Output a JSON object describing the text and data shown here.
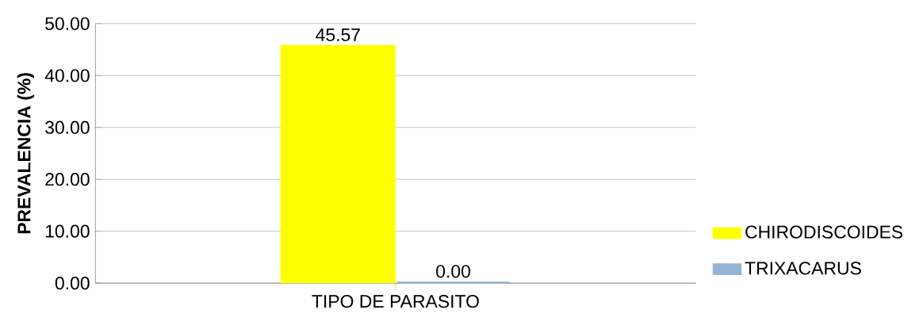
{
  "chart_data": {
    "type": "bar",
    "ylabel": "PREVALENCIA (%)",
    "categories": [
      "TIPO DE PARASITO"
    ],
    "series": [
      {
        "name": "CHIRODISCOIDES",
        "color": "#ffff00",
        "values": [
          45.57
        ],
        "value_labels": [
          "45.57"
        ]
      },
      {
        "name": "TRIXACARUS",
        "color": "#95b3d7",
        "values": [
          0.0
        ],
        "value_labels": [
          "0.00"
        ]
      }
    ],
    "ylim": [
      0,
      50
    ],
    "yticks": [
      {
        "value": 0,
        "label": "0.00"
      },
      {
        "value": 10,
        "label": "10.00"
      },
      {
        "value": 20,
        "label": "20.00"
      },
      {
        "value": 30,
        "label": "30.00"
      },
      {
        "value": 40,
        "label": "40.00"
      },
      {
        "value": 50,
        "label": "50.00"
      }
    ],
    "grid": "y",
    "legend": "bottom right"
  }
}
